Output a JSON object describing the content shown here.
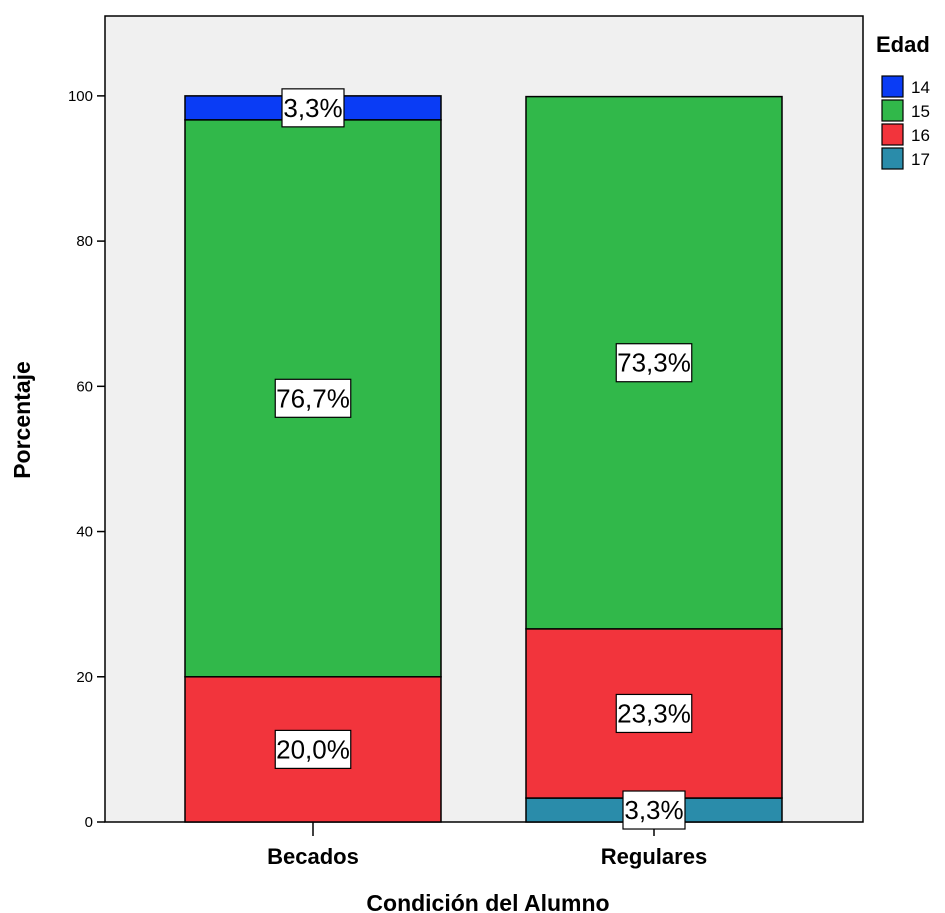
{
  "chart_data": {
    "type": "bar",
    "stacked": true,
    "xlabel": "Condición del Alumno",
    "ylabel": "Porcentaje",
    "ylim": [
      0,
      111
    ],
    "yticks": [
      0,
      20,
      40,
      60,
      80,
      100
    ],
    "grid": false,
    "legend_position": "right",
    "legend_title": "Edad",
    "categories": [
      "Becados",
      "Regulares"
    ],
    "series": [
      {
        "name": "14",
        "color": "#0a3cf5",
        "values": [
          3.3,
          0
        ],
        "labels": [
          "3,3%",
          ""
        ]
      },
      {
        "name": "15",
        "color": "#31b84a",
        "values": [
          76.7,
          73.3
        ],
        "labels": [
          "76,7%",
          "73,3%"
        ]
      },
      {
        "name": "16",
        "color": "#f2343c",
        "values": [
          20.0,
          23.3
        ],
        "labels": [
          "20,0%",
          "23,3%"
        ]
      },
      {
        "name": "17",
        "color": "#2a8caa",
        "values": [
          0,
          3.3
        ],
        "labels": [
          "",
          "3,3%"
        ]
      }
    ],
    "stack_order_bottom_to_top": [
      "17",
      "16",
      "15",
      "14"
    ],
    "plot_background": "#f0f0f0"
  }
}
